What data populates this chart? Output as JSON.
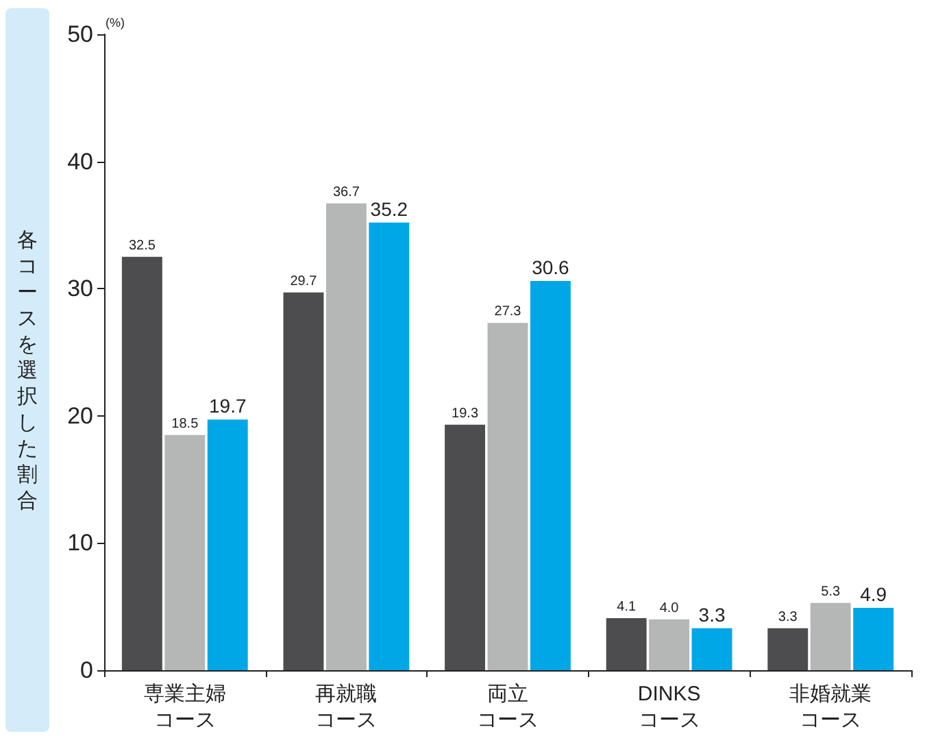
{
  "chart_data": {
    "type": "bar",
    "ylabel": "各コースを選択した割合",
    "categories": [
      "専業主婦コース",
      "再就職コース",
      "両立コース",
      "DINKSコース",
      "非婚就業コース"
    ],
    "series": [
      {
        "color": "#4d4c4e",
        "values": [
          32.5,
          29.7,
          19.3,
          4.1,
          3.3
        ],
        "value_labels": [
          "32.5",
          "29.7",
          "19.3",
          "4.1",
          "3.3"
        ]
      },
      {
        "color": "#b5b6b6",
        "values": [
          18.5,
          36.7,
          27.3,
          4.0,
          5.3
        ],
        "value_labels": [
          "18.5",
          "36.7",
          "27.3",
          "4.0",
          "5.3"
        ]
      },
      {
        "color": "#00a7e6",
        "values": [
          19.7,
          35.2,
          30.6,
          3.3,
          4.9
        ],
        "value_labels": [
          "19.7",
          "35.2",
          "30.6",
          "3.3",
          "4.9"
        ]
      }
    ],
    "ylim": [
      0,
      50
    ],
    "yticks": [
      0,
      10,
      20,
      30,
      40,
      50
    ],
    "annotations": [
      "(%)"
    ],
    "grid": false
  }
}
